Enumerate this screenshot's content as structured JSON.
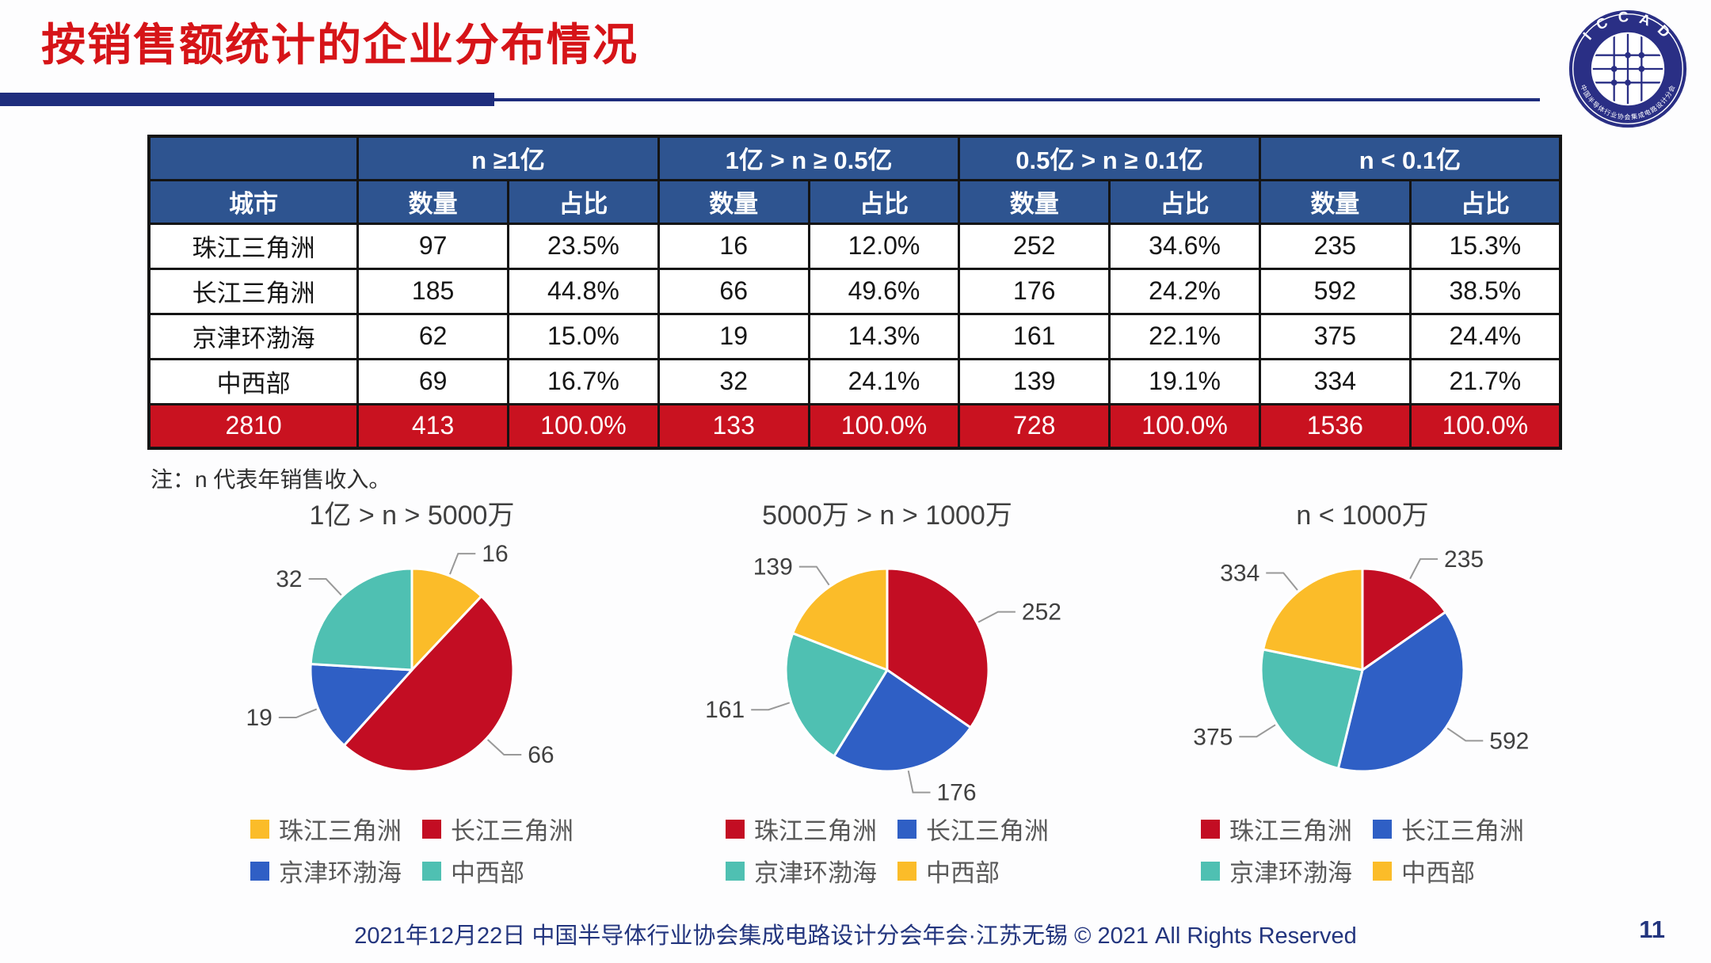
{
  "title": "按销售额统计的企业分布情况",
  "logo": {
    "acronym_letters": "I C C A D",
    "ring_text": "中国半导体行业协会集成电路设计分会"
  },
  "table": {
    "corner_label": "",
    "city_header": "城市",
    "group_headers": [
      "n ≥1亿",
      "1亿 > n ≥ 0.5亿",
      "0.5亿 > n ≥ 0.1亿",
      "n < 0.1亿"
    ],
    "sub_headers": [
      "数量",
      "占比",
      "数量",
      "占比",
      "数量",
      "占比",
      "数量",
      "占比"
    ],
    "rows": [
      {
        "city": "珠江三角洲",
        "cells": [
          "97",
          "23.5%",
          "16",
          "12.0%",
          "252",
          "34.6%",
          "235",
          "15.3%"
        ]
      },
      {
        "city": "长江三角洲",
        "cells": [
          "185",
          "44.8%",
          "66",
          "49.6%",
          "176",
          "24.2%",
          "592",
          "38.5%"
        ]
      },
      {
        "city": "京津环渤海",
        "cells": [
          "62",
          "15.0%",
          "19",
          "14.3%",
          "161",
          "22.1%",
          "375",
          "24.4%"
        ]
      },
      {
        "city": "中西部",
        "cells": [
          "69",
          "16.7%",
          "32",
          "24.1%",
          "139",
          "19.1%",
          "334",
          "21.7%"
        ]
      }
    ],
    "total_row": {
      "city": "2810",
      "cells": [
        "413",
        "100.0%",
        "133",
        "100.0%",
        "728",
        "100.0%",
        "1536",
        "100.0%"
      ]
    }
  },
  "note": "注：n 代表年销售收入。",
  "chart_data": [
    {
      "type": "pie",
      "title": "1亿 > n > 5000万",
      "categories": [
        "珠江三角洲",
        "长江三角洲",
        "京津环渤海",
        "中西部"
      ],
      "values": [
        16,
        66,
        19,
        32
      ],
      "colors": [
        "#fbbc29",
        "#c30d23",
        "#2f5fc5",
        "#4fc0b2"
      ],
      "start_angle_deg": 0,
      "direction": "clockwise",
      "legend_position": "bottom",
      "data_labels": [
        "16",
        "66",
        "19",
        "32"
      ]
    },
    {
      "type": "pie",
      "title": "5000万 > n > 1000万",
      "categories": [
        "珠江三角洲",
        "长江三角洲",
        "京津环渤海",
        "中西部"
      ],
      "values": [
        252,
        176,
        161,
        139
      ],
      "colors": [
        "#c30d23",
        "#2f5fc5",
        "#4fc0b2",
        "#fbbc29"
      ],
      "start_angle_deg": 0,
      "direction": "clockwise",
      "legend_position": "bottom",
      "data_labels": [
        "252",
        "176",
        "161",
        "139"
      ]
    },
    {
      "type": "pie",
      "title": "n < 1000万",
      "categories": [
        "珠江三角洲",
        "长江三角洲",
        "京津环渤海",
        "中西部"
      ],
      "values": [
        235,
        592,
        375,
        334
      ],
      "colors": [
        "#c30d23",
        "#2f5fc5",
        "#4fc0b2",
        "#fbbc29"
      ],
      "start_angle_deg": 0,
      "direction": "clockwise",
      "legend_position": "bottom",
      "data_labels": [
        "235",
        "592",
        "375",
        "334"
      ]
    }
  ],
  "footer": {
    "text": "2021年12月22日 中国半导体行业协会集成电路设计分会年会·江苏无锡 © 2021 All Rights Reserved",
    "page_number": "11"
  },
  "colors": {
    "title_red": "#d61418",
    "rule_navy": "#1e2d7d",
    "table_header_blue": "#2e5490",
    "table_total_red": "#c91220",
    "pie_red": "#c30d23",
    "pie_blue": "#2f5fc5",
    "pie_teal": "#4fc0b2",
    "pie_yellow": "#fbbc29",
    "footer_navy": "#23357e",
    "leader_line_gray": "#999999"
  }
}
